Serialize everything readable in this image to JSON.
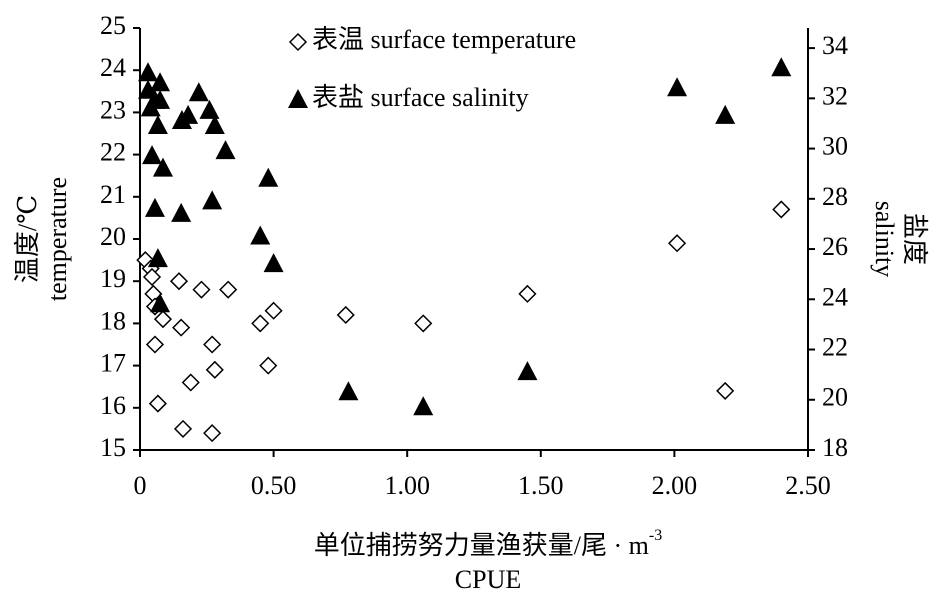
{
  "chart_data": {
    "type": "scatter",
    "xlabel": "单位捕捞努力量渔获量/尾 · m",
    "xlabel_superscript": "-3",
    "xlabel2": "CPUE",
    "ylabel": [
      "温度/℃",
      "temperature"
    ],
    "y2label": [
      "盐度",
      "salinity"
    ],
    "xlim": [
      0,
      2.5
    ],
    "xticks": [
      0,
      {
        "value": 0.5,
        "label": "0.50"
      },
      {
        "value": 1,
        "label": "1.00"
      },
      {
        "value": 1.5,
        "label": "1.50"
      },
      {
        "value": 2,
        "label": "2.00"
      },
      {
        "value": 2.5,
        "label": "2.50"
      }
    ],
    "ylim": [
      15,
      25
    ],
    "yticks": [
      15,
      16,
      17,
      18,
      19,
      20,
      21,
      22,
      23,
      24,
      25
    ],
    "y2lim": [
      18,
      34.8
    ],
    "y2ticks": [
      18,
      20,
      22,
      24,
      26,
      28,
      30,
      32,
      34
    ],
    "legend": "top-left",
    "series": [
      {
        "name": "表温 surface temperature",
        "marker": "diamond",
        "color": "#000000",
        "x": [
          0.02,
          0.04,
          0.045,
          0.05,
          0.056,
          0.086,
          0.056,
          0.067,
          0.146,
          0.154,
          0.161,
          0.19,
          0.23,
          0.27,
          0.27,
          0.28,
          0.33,
          0.45,
          0.5,
          0.48,
          0.77,
          1.06,
          1.45,
          2.01,
          2.19,
          2.4
        ],
        "values": [
          19.5,
          19.3,
          19.1,
          18.7,
          18.4,
          18.1,
          17.5,
          16.1,
          19.0,
          17.9,
          15.5,
          16.6,
          18.8,
          17.5,
          15.4,
          16.9,
          18.8,
          18.0,
          18.3,
          17.0,
          18.2,
          18.0,
          18.7,
          19.9,
          16.4,
          20.7
        ]
      },
      {
        "name": "表盐 surface salinity",
        "marker": "triangle",
        "color": "#000000",
        "axis": "y2",
        "x": [
          0.03,
          0.03,
          0.04,
          0.056,
          0.045,
          0.075,
          0.075,
          0.067,
          0.086,
          0.056,
          0.067,
          0.075,
          0.157,
          0.18,
          0.154,
          0.22,
          0.26,
          0.28,
          0.32,
          0.27,
          0.45,
          0.48,
          0.5,
          0.78,
          1.06,
          1.45,
          2.01,
          2.19,
          2.4
        ],
        "values": [
          33.0,
          32.3,
          31.6,
          31.9,
          29.7,
          32.6,
          31.9,
          30.9,
          29.2,
          27.6,
          25.6,
          23.8,
          31.1,
          31.3,
          27.4,
          32.2,
          31.5,
          30.9,
          29.9,
          27.9,
          26.5,
          28.8,
          25.4,
          20.3,
          19.7,
          21.1,
          32.4,
          31.3,
          33.2
        ]
      }
    ]
  }
}
